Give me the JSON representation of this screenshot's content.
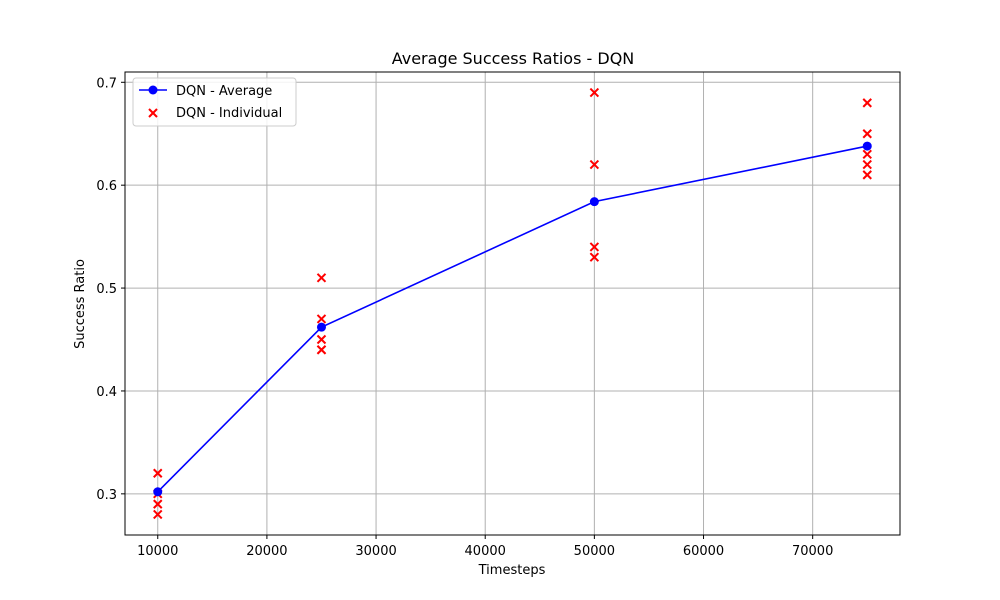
{
  "chart_data": {
    "type": "line",
    "title": "Average Success Ratios - DQN",
    "xlabel": "Timesteps",
    "ylabel": "Success Ratio",
    "xlim": [
      7000,
      78000
    ],
    "ylim": [
      0.26,
      0.71
    ],
    "xticks": [
      10000,
      20000,
      30000,
      40000,
      50000,
      60000,
      70000
    ],
    "yticks": [
      0.3,
      0.4,
      0.5,
      0.6,
      0.7
    ],
    "xtick_labels": [
      "10000",
      "20000",
      "30000",
      "40000",
      "50000",
      "60000",
      "70000"
    ],
    "ytick_labels": [
      "0.3",
      "0.4",
      "0.5",
      "0.6",
      "0.7"
    ],
    "grid": true,
    "legend_position": "top-left",
    "series": [
      {
        "name": "DQN - Average",
        "kind": "line-marker",
        "color": "#0000ff",
        "x": [
          10000,
          25000,
          50000,
          75000
        ],
        "y": [
          0.302,
          0.462,
          0.584,
          0.638
        ]
      },
      {
        "name": "DQN - Individual",
        "kind": "scatter-x",
        "color": "#ff0000",
        "points": [
          [
            10000,
            0.32
          ],
          [
            10000,
            0.3
          ],
          [
            10000,
            0.29
          ],
          [
            10000,
            0.28
          ],
          [
            25000,
            0.51
          ],
          [
            25000,
            0.47
          ],
          [
            25000,
            0.45
          ],
          [
            25000,
            0.44
          ],
          [
            25000,
            0.44
          ],
          [
            50000,
            0.69
          ],
          [
            50000,
            0.62
          ],
          [
            50000,
            0.54
          ],
          [
            50000,
            0.53
          ],
          [
            75000,
            0.68
          ],
          [
            75000,
            0.65
          ],
          [
            75000,
            0.63
          ],
          [
            75000,
            0.62
          ],
          [
            75000,
            0.61
          ]
        ]
      }
    ]
  }
}
